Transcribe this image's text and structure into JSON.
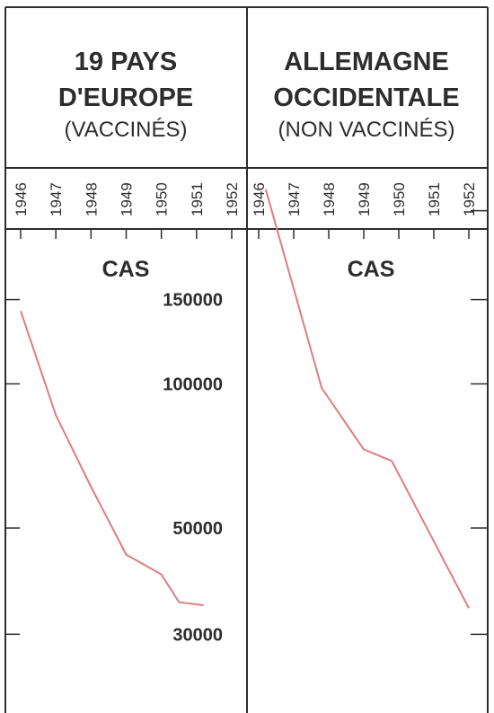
{
  "chart_data": [
    {
      "type": "line",
      "title_lines": [
        "19 PAYS",
        "D'EUROPE",
        "(VACCINÉS)"
      ],
      "ylabel": "CAS",
      "x": [
        1946,
        1947,
        1948,
        1949,
        1950,
        1951,
        1952
      ],
      "y_scale": "log",
      "ylim": [
        24000,
        185000
      ],
      "y_ticks": [
        30000,
        50000,
        100000,
        150000
      ],
      "series": [
        {
          "x": [
            1946,
            1947,
            1948,
            1949,
            1950,
            1950.5,
            1951.2
          ],
          "y": [
            142000,
            86000,
            61000,
            44000,
            40000,
            35000,
            34500
          ]
        }
      ]
    },
    {
      "type": "line",
      "title_lines": [
        "ALLEMAGNE",
        "OCCIDENTALE",
        "(NON VACCINÉS)"
      ],
      "ylabel": "CAS",
      "x": [
        1946,
        1947,
        1948,
        1949,
        1950,
        1951,
        1952
      ],
      "series": [
        {
          "x": [
            1946.2,
            1947.8,
            1949,
            1949.8,
            1952
          ],
          "y": [
            255000,
            98000,
            73000,
            69000,
            34000
          ]
        }
      ]
    }
  ],
  "colors": {
    "line": "#e07c80",
    "text": "#2d2d2d",
    "frame": "#2d2d2d"
  }
}
